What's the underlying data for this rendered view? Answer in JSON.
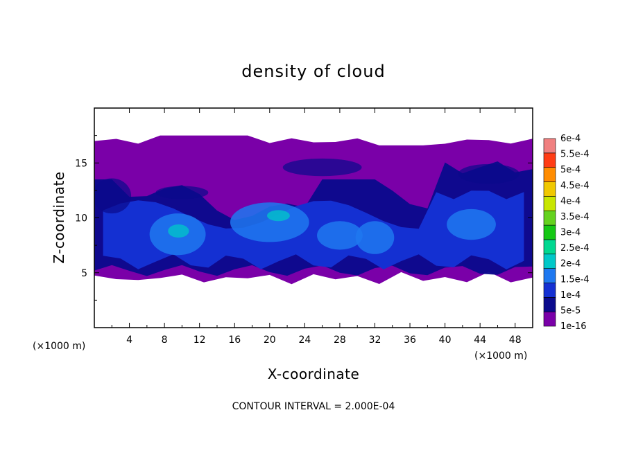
{
  "chart_data": {
    "type": "heatmap",
    "title": "density of cloud",
    "xlabel": "X-coordinate",
    "ylabel": "Z-coordinate",
    "x_unit_left": "(×1000 m)",
    "x_unit_right": "(×1000 m)",
    "footer": "CONTOUR INTERVAL = 2.000E-04",
    "xlim": [
      0,
      50
    ],
    "ylim": [
      0,
      20
    ],
    "x_ticks": [
      4,
      8,
      12,
      16,
      20,
      24,
      28,
      32,
      36,
      40,
      44,
      48
    ],
    "x_tick_labels": [
      "4",
      "8",
      "12",
      "16",
      "20",
      "24",
      "28",
      "32",
      "36",
      "40",
      "44",
      "48"
    ],
    "y_ticks": [
      5,
      10,
      15
    ],
    "y_tick_labels": [
      "5",
      "10",
      "15"
    ],
    "cloud_layer": {
      "base_z": 4.5,
      "top_z": 17
    },
    "colorbar": {
      "labels": [
        "1e-16",
        "5e-5",
        "1e-4",
        "1.5e-4",
        "2e-4",
        "2.5e-4",
        "3e-4",
        "3.5e-4",
        "4e-4",
        "4.5e-4",
        "5e-4",
        "5.5e-4",
        "6e-4"
      ],
      "colors": [
        "#7a00a8",
        "#0a0a8c",
        "#1430d2",
        "#1e78f0",
        "#00c8c8",
        "#00d890",
        "#14c814",
        "#64d21e",
        "#c8e600",
        "#f0c800",
        "#ff8c00",
        "#ff3c14",
        "#f08080"
      ]
    }
  }
}
